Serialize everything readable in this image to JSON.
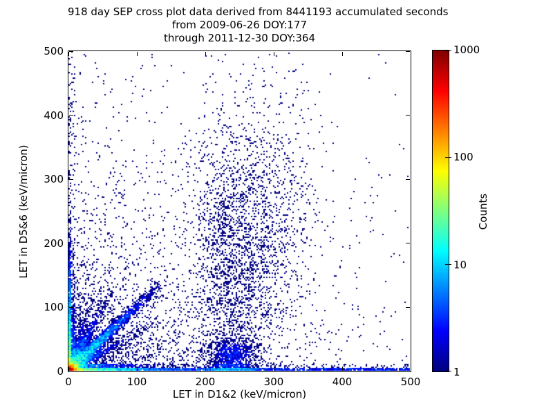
{
  "figure": {
    "bg_color": "#ffffff",
    "text_color": "#000000",
    "frame_color": "#000000",
    "title_lines": [
      "918 day SEP cross plot data derived from 8441193 accumulated seconds",
      "from 2009-06-26 DOY:177",
      "through 2011-12-30 DOY:364"
    ],
    "xlabel": "LET in D1&2 (keV/micron)",
    "ylabel": "LET in D5&6 (keV/micron)"
  },
  "chart_data": {
    "type": "scatter",
    "subtype": "2d-histogram colored by counts (jet colormap, log color scale)",
    "title": "918 day SEP cross plot data derived from 8441193 accumulated seconds",
    "subtitle_lines": [
      "from 2009-06-26 DOY:177",
      "through 2011-12-30 DOY:364"
    ],
    "days": 918,
    "accumulated_seconds": 8441193,
    "date_start": "2009-06-26 DOY:177",
    "date_end": "2011-12-30 DOY:364",
    "xlabel": "LET in D1&2 (keV/micron)",
    "ylabel": "LET in D5&6 (keV/micron)",
    "xlim": [
      0,
      500
    ],
    "ylim": [
      0,
      500
    ],
    "x_ticks": [
      0,
      100,
      200,
      300,
      400,
      500
    ],
    "y_ticks": [
      0,
      100,
      200,
      300,
      400,
      500
    ],
    "grid": false,
    "legend": "none",
    "colormap": "jet",
    "colorbar": {
      "label": "Counts",
      "scale": "log",
      "range": [
        1,
        1000
      ],
      "ticks": [
        1,
        10,
        100,
        1000
      ],
      "position": "right"
    },
    "bin_size_data_units": 2,
    "seed": 20090626,
    "point_color_min_count": "#00007f",
    "density_features": [
      {
        "kind": "core",
        "amp": 1500,
        "scale": 7.5,
        "note": "hot spot at origin, ~1000 counts, red-orange-yellow rings"
      },
      {
        "kind": "corner_fill",
        "amp": 3.2,
        "sx": 50,
        "ky": 1.3,
        "note": "dense blue triangular fill near origin"
      },
      {
        "kind": "corner_fill",
        "amp": 0.35,
        "sx": 130,
        "ky": 1.0,
        "note": "diffuse halo near origin"
      },
      {
        "kind": "hband",
        "ymin": 0,
        "ymax": 4,
        "amp": 60,
        "decay": 38,
        "base": 2.6,
        "bump": {
          "x": 238,
          "amp": 6,
          "sigma": 20
        },
        "note": "dense band along x-axis out to 500"
      },
      {
        "kind": "hband",
        "ymin": 4,
        "ymax": 10,
        "amp": 8,
        "decay": 45,
        "base": 0.3,
        "bump": {
          "x": 238,
          "amp": 1.5,
          "sigma": 18
        },
        "note": "fringe above x-axis band"
      },
      {
        "kind": "vband",
        "xmin": 0,
        "xmax": 4,
        "amp": 45,
        "decay": 55,
        "base": 0.18,
        "note": "dense band along y-axis, fading with height"
      },
      {
        "kind": "vband",
        "xmin": 4,
        "xmax": 10,
        "amp": 5,
        "decay": 50,
        "base": 0.07,
        "note": "fringe right of y-axis band"
      },
      {
        "kind": "ray",
        "angle_deg": 45,
        "amp": 22,
        "sigma": 4.5,
        "decay": 65,
        "maxlen": 190,
        "note": "strong cyan diagonal streak y=x from origin"
      },
      {
        "kind": "ray",
        "angle_deg": 63,
        "amp": 7,
        "sigma": 3.5,
        "decay": 55,
        "maxlen": 140,
        "note": "steeper faint streak"
      },
      {
        "kind": "ray",
        "angle_deg": 72,
        "amp": 4.5,
        "sigma": 3.0,
        "decay": 50,
        "maxlen": 130,
        "note": "steepest faint streak"
      },
      {
        "kind": "ray",
        "angle_deg": 30,
        "amp": 5,
        "sigma": 3.5,
        "decay": 55,
        "maxlen": 140,
        "note": "shallow faint streak"
      },
      {
        "kind": "cloud",
        "cx": 242,
        "cy": 160,
        "sx": 30,
        "sy": 120,
        "amp": 0.55,
        "note": "vertical sparse cluster column near x=240"
      },
      {
        "kind": "cloud",
        "cx": 240,
        "cy": 25,
        "sx": 20,
        "sy": 16,
        "amp": 2.2,
        "note": "dense pyramid bump on x-axis band near x=240"
      },
      {
        "kind": "cloud",
        "cx": 310,
        "cy": 250,
        "sx": 28,
        "sy": 110,
        "amp": 0.16,
        "note": "faint sparse column near x=310"
      },
      {
        "kind": "bg",
        "amp": 0.1,
        "sx": 230,
        "sy": 230,
        "uniform": 0.0013,
        "note": "sparse single-count background, denser toward lower-left"
      }
    ]
  }
}
